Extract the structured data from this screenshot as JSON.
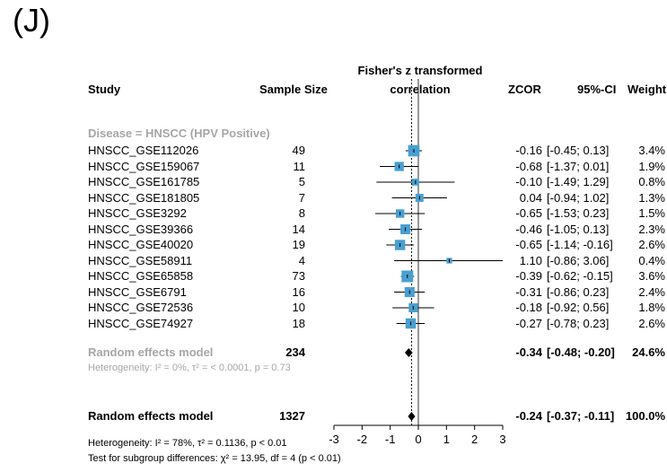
{
  "panel_label": "(J)",
  "headers": {
    "study": "Study",
    "sample_size": "Sample Size",
    "effect_line1": "Fisher's z transformed",
    "effect_line2": "correlation",
    "zcor": "ZCOR",
    "ci": "95%-CI",
    "weight": "Weight"
  },
  "subgroup": {
    "label": "Disease = HNSCC (HPV Positive)",
    "random_label": "Random effects model",
    "random_n": "234",
    "random_zcor": "-0.34",
    "random_ci": "[-0.48; -0.20]",
    "random_weight": "24.6%",
    "heterogeneity": "Heterogeneity: I² = 0%, τ² = < 0.0001, p = 0.73"
  },
  "overall": {
    "label": "Random effects model",
    "n": "1327",
    "zcor": "-0.24",
    "ci": "[-0.37; -0.11]",
    "weight": "100.0%",
    "heterogeneity": "Heterogeneity: I² = 78%, τ² = 0.1136, p < 0.01",
    "subgroup_test": "Test for subgroup differences: χ² = 13.95, df = 4 (p < 0.01)"
  },
  "chart_data": {
    "type": "forest",
    "xlabel": "",
    "xlim": [
      -3,
      3
    ],
    "xticks": [
      "-3",
      "-2",
      "-1",
      "0",
      "1",
      "2",
      "3"
    ],
    "reference_line": 0,
    "overall_dashed_line": -0.24,
    "studies": [
      {
        "name": "HNSCC_GSE112026",
        "n": "49",
        "zcor": -0.16,
        "lo": -0.45,
        "hi": 0.13,
        "zcor_text": "-0.16",
        "ci_text": "[-0.45; 0.13]",
        "weight": "3.4%"
      },
      {
        "name": "HNSCC_GSE159067",
        "n": "11",
        "zcor": -0.68,
        "lo": -1.37,
        "hi": 0.01,
        "zcor_text": "-0.68",
        "ci_text": "[-1.37; 0.01]",
        "weight": "1.9%"
      },
      {
        "name": "HNSCC_GSE161785",
        "n": "5",
        "zcor": -0.1,
        "lo": -1.49,
        "hi": 1.29,
        "zcor_text": "-0.10",
        "ci_text": "[-1.49; 1.29]",
        "weight": "0.8%"
      },
      {
        "name": "HNSCC_GSE181805",
        "n": "7",
        "zcor": 0.04,
        "lo": -0.94,
        "hi": 1.02,
        "zcor_text": "0.04",
        "ci_text": "[-0.94; 1.02]",
        "weight": "1.3%"
      },
      {
        "name": "HNSCC_GSE3292",
        "n": "8",
        "zcor": -0.65,
        "lo": -1.53,
        "hi": 0.23,
        "zcor_text": "-0.65",
        "ci_text": "[-1.53; 0.23]",
        "weight": "1.5%"
      },
      {
        "name": "HNSCC_GSE39366",
        "n": "14",
        "zcor": -0.46,
        "lo": -1.05,
        "hi": 0.13,
        "zcor_text": "-0.46",
        "ci_text": "[-1.05; 0.13]",
        "weight": "2.3%"
      },
      {
        "name": "HNSCC_GSE40020",
        "n": "19",
        "zcor": -0.65,
        "lo": -1.14,
        "hi": -0.16,
        "zcor_text": "-0.65",
        "ci_text": "[-1.14; -0.16]",
        "weight": "2.6%"
      },
      {
        "name": "HNSCC_GSE58911",
        "n": "4",
        "zcor": 1.1,
        "lo": -0.86,
        "hi": 3.06,
        "zcor_text": "1.10",
        "ci_text": "[-0.86; 3.06]",
        "weight": "0.4%"
      },
      {
        "name": "HNSCC_GSE65858",
        "n": "73",
        "zcor": -0.39,
        "lo": -0.62,
        "hi": -0.15,
        "zcor_text": "-0.39",
        "ci_text": "[-0.62; -0.15]",
        "weight": "3.6%"
      },
      {
        "name": "HNSCC_GSE6791",
        "n": "16",
        "zcor": -0.31,
        "lo": -0.86,
        "hi": 0.23,
        "zcor_text": "-0.31",
        "ci_text": "[-0.86; 0.23]",
        "weight": "2.4%"
      },
      {
        "name": "HNSCC_GSE72536",
        "n": "10",
        "zcor": -0.18,
        "lo": -0.92,
        "hi": 0.56,
        "zcor_text": "-0.18",
        "ci_text": "[-0.92; 0.56]",
        "weight": "1.8%"
      },
      {
        "name": "HNSCC_GSE74927",
        "n": "18",
        "zcor": -0.27,
        "lo": -0.78,
        "hi": 0.23,
        "zcor_text": "-0.27",
        "ci_text": "[-0.78; 0.23]",
        "weight": "2.6%"
      }
    ],
    "subgroup_diamond": {
      "est": -0.34,
      "lo": -0.48,
      "hi": -0.2
    },
    "overall_diamond": {
      "est": -0.24,
      "lo": -0.37,
      "hi": -0.11
    },
    "colors": {
      "box": "#4a9fd0",
      "line": "#000000",
      "subgroup_text": "#a6a6a6"
    }
  }
}
